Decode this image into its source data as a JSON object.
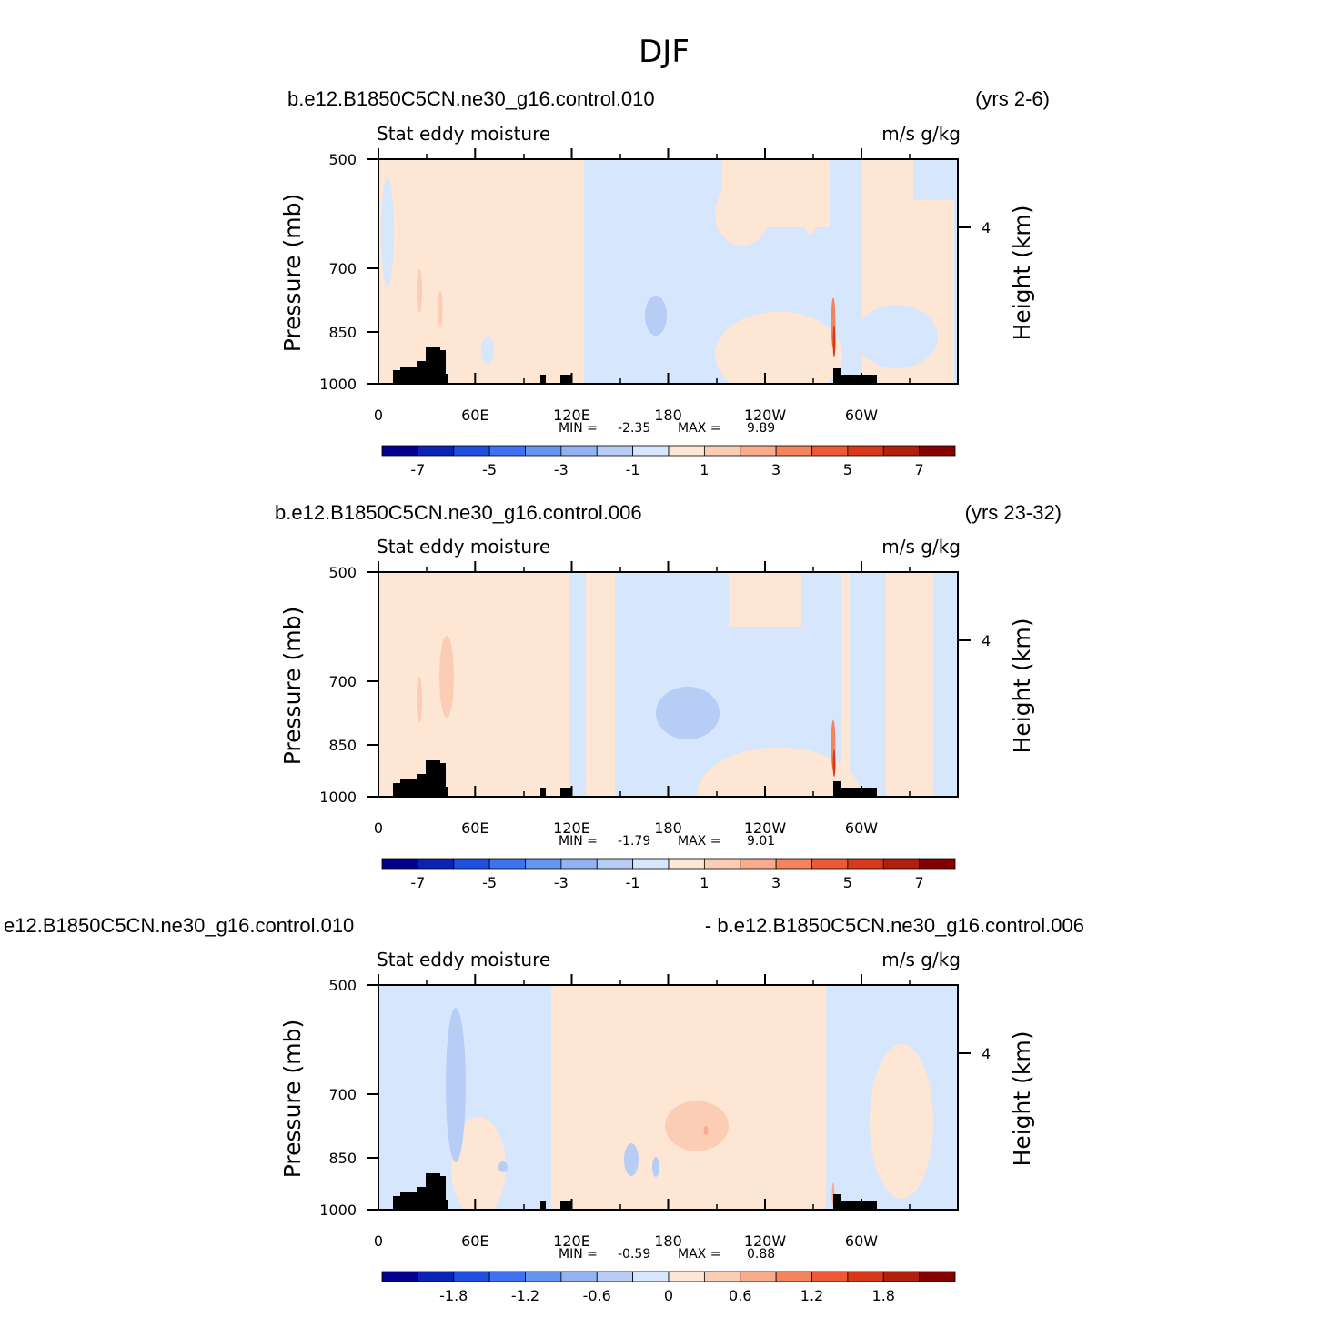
{
  "figure_title": "DJF",
  "colors": {
    "palette": [
      "#03008f",
      "#0a23b5",
      "#1e4fe0",
      "#3e72f0",
      "#6495f0",
      "#92b2f2",
      "#b8cdf6",
      "#d6e6fc",
      "#fde6d4",
      "#fbcdb4",
      "#f8ac8c",
      "#f4845e",
      "#ec5a35",
      "#d8391a",
      "#b21f0c",
      "#860000"
    ],
    "land": "#000000"
  },
  "chart_data": [
    {
      "type": "heatmap",
      "case_left": "b.e12.B1850C5CN.ne30_g16.control.010",
      "case_right": "(yrs 2-6)",
      "left_string": "Stat eddy moisture",
      "right_string": "m/s g/kg",
      "ylabel": "Pressure (mb)",
      "y2label": "Height (km)",
      "y_ticks": [
        "500",
        "700",
        "850",
        "1000"
      ],
      "y2_ticks": [
        "4"
      ],
      "x_ticks": [
        "0",
        "60E",
        "120E",
        "180",
        "120W",
        "60W"
      ],
      "min_label": "MIN =",
      "min_value": "-2.35",
      "max_label": "MAX =",
      "max_value": "9.89",
      "colorbar_labels": [
        "-7",
        "-5",
        "-3",
        "-1",
        "1",
        "3",
        "5",
        "7"
      ]
    },
    {
      "type": "heatmap",
      "case_left": "b.e12.B1850C5CN.ne30_g16.control.006",
      "case_right": "(yrs 23-32)",
      "left_string": "Stat eddy moisture",
      "right_string": "m/s g/kg",
      "ylabel": "Pressure (mb)",
      "y2label": "Height (km)",
      "y_ticks": [
        "500",
        "700",
        "850",
        "1000"
      ],
      "y2_ticks": [
        "4"
      ],
      "x_ticks": [
        "0",
        "60E",
        "120E",
        "180",
        "120W",
        "60W"
      ],
      "min_label": "MIN =",
      "min_value": "-1.79",
      "max_label": "MAX =",
      "max_value": "9.01",
      "colorbar_labels": [
        "-7",
        "-5",
        "-3",
        "-1",
        "1",
        "3",
        "5",
        "7"
      ]
    },
    {
      "type": "heatmap",
      "case_left": "e12.B1850C5CN.ne30_g16.control.010",
      "case_right": "- b.e12.B1850C5CN.ne30_g16.control.006",
      "left_string": "Stat eddy moisture",
      "right_string": "m/s g/kg",
      "ylabel": "Pressure (mb)",
      "y2label": "Height (km)",
      "y_ticks": [
        "500",
        "700",
        "850",
        "1000"
      ],
      "y2_ticks": [
        "4"
      ],
      "x_ticks": [
        "0",
        "60E",
        "120E",
        "180",
        "120W",
        "60W"
      ],
      "min_label": "MIN =",
      "min_value": "-0.59",
      "max_label": "MAX =",
      "max_value": "0.88",
      "colorbar_labels": [
        "-1.8",
        "-1.2",
        "-0.6",
        "0",
        "0.6",
        "1.2",
        "1.8"
      ]
    }
  ]
}
